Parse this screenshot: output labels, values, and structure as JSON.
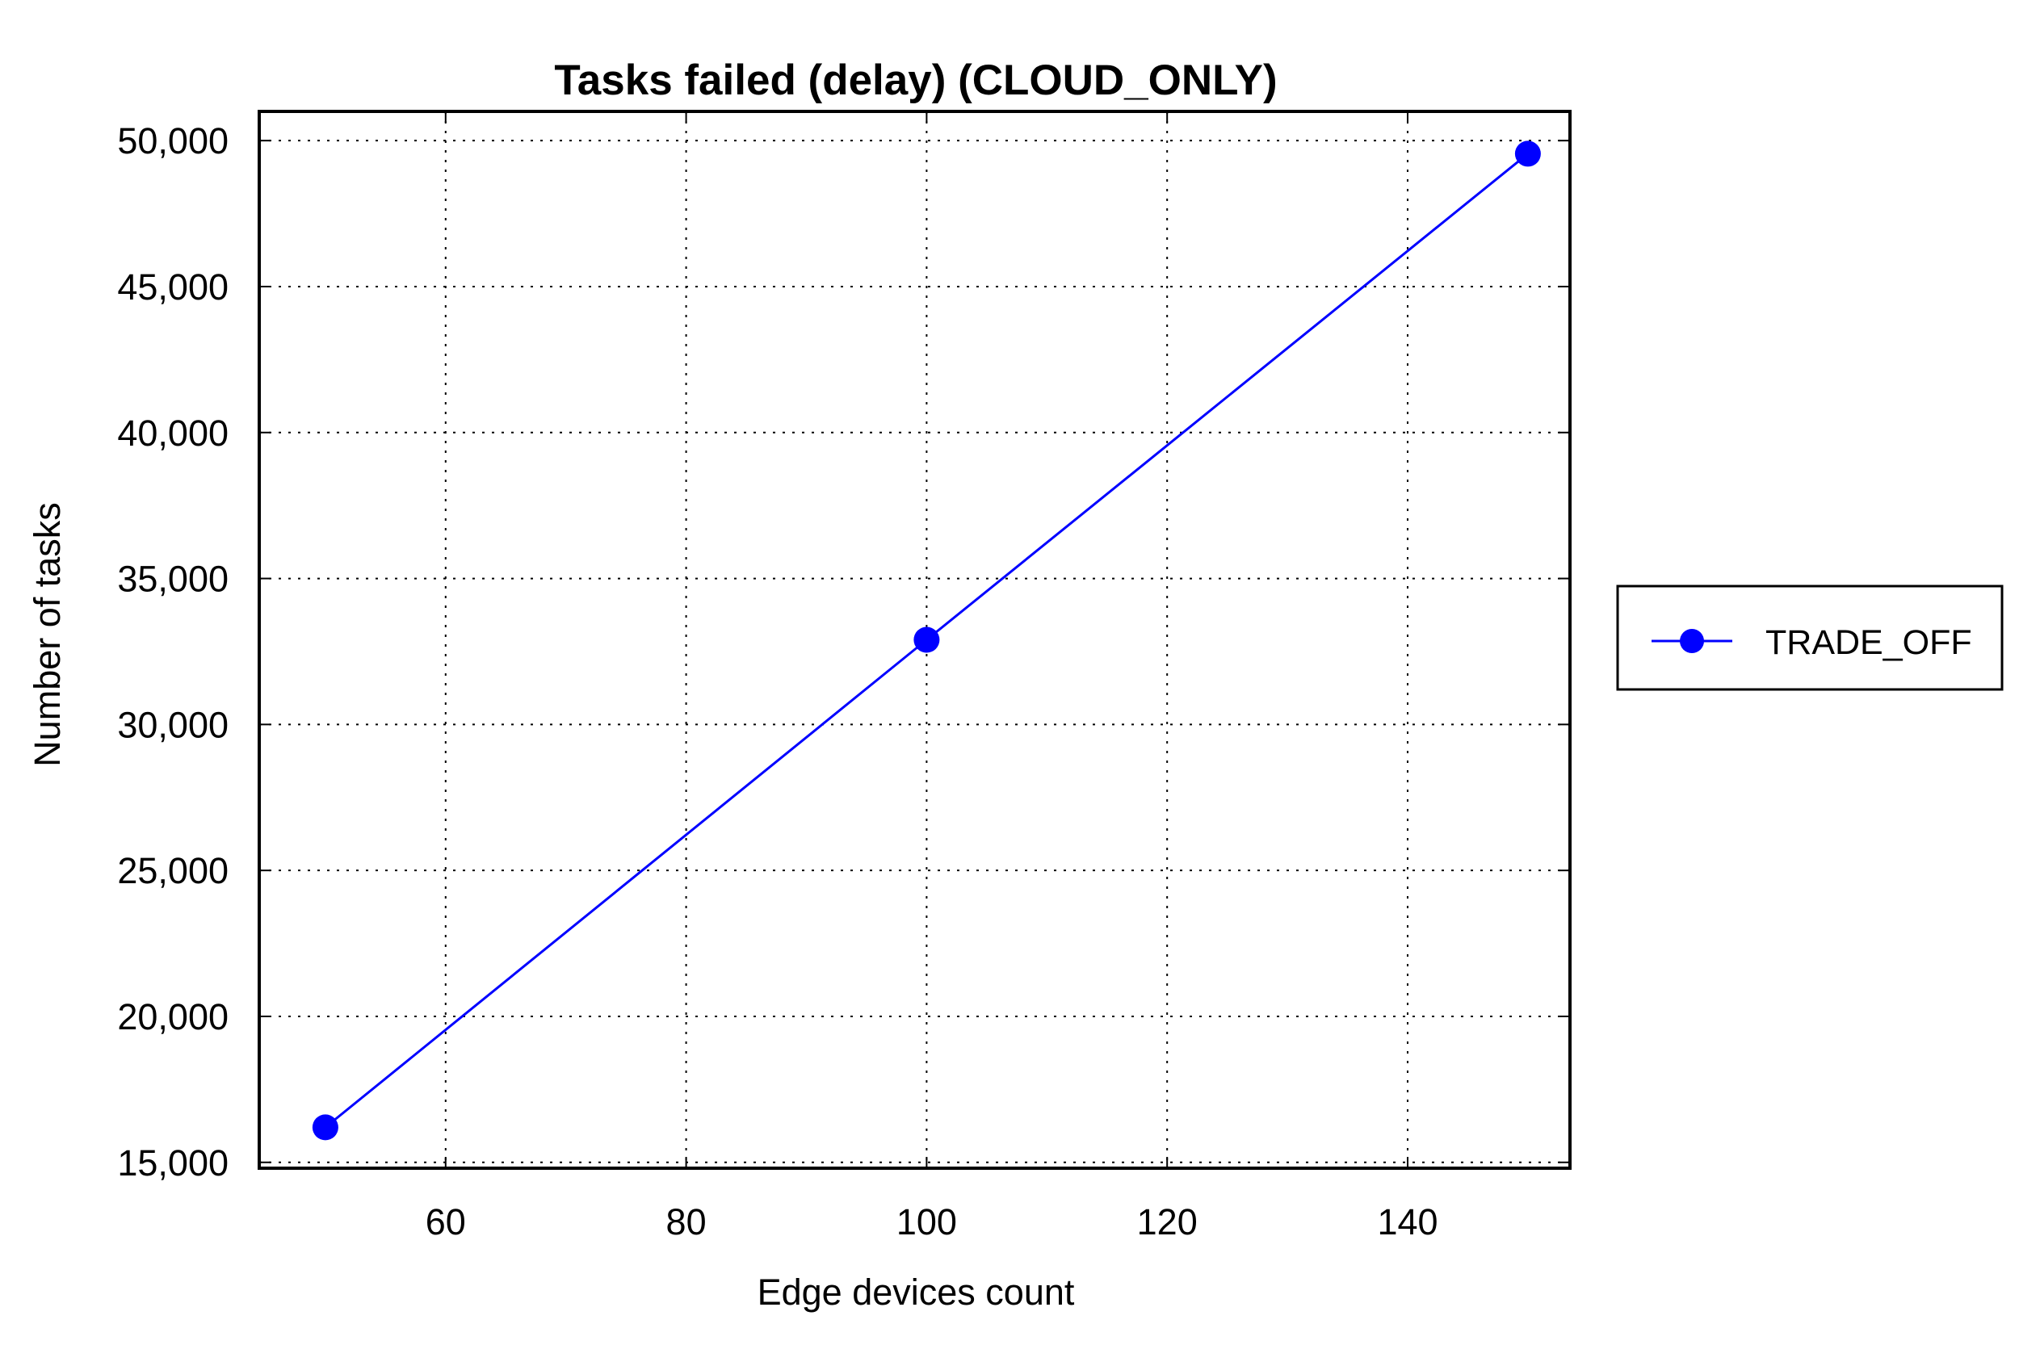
{
  "chart_data": {
    "type": "line",
    "title": "Tasks failed (delay) (CLOUD_ONLY)",
    "xlabel": "Edge devices count",
    "ylabel": "Number of tasks",
    "xlim": [
      44.5,
      153.5
    ],
    "ylim": [
      14800,
      51000
    ],
    "xticks": [
      60,
      80,
      100,
      120,
      140
    ],
    "xtick_labels": [
      "60",
      "80",
      "100",
      "120",
      "140"
    ],
    "yticks": [
      15000,
      20000,
      25000,
      30000,
      35000,
      40000,
      45000,
      50000
    ],
    "ytick_labels": [
      "15,000",
      "20,000",
      "25,000",
      "30,000",
      "35,000",
      "40,000",
      "45,000",
      "50,000"
    ],
    "grid": true,
    "legend_position": "right",
    "series": [
      {
        "name": "TRADE_OFF",
        "color": "#0000ff",
        "marker": "circle",
        "x": [
          50,
          100,
          150
        ],
        "y": [
          16200,
          32900,
          49550
        ]
      }
    ]
  }
}
